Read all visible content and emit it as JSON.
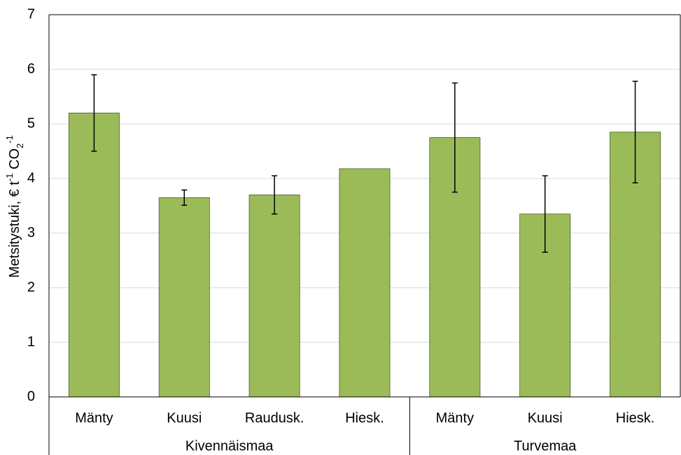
{
  "chart_data": {
    "type": "bar",
    "ylabel_parts": [
      {
        "text": "Metsitystuki, € t"
      },
      {
        "sup": "-1"
      },
      {
        "text": " CO"
      },
      {
        "sub": "2"
      },
      {
        "sup": "-1"
      }
    ],
    "categories": [
      "Mänty",
      "Kuusi",
      "Raudusk.",
      "Hiesk.",
      "Mänty",
      "Kuusi",
      "Hiesk."
    ],
    "groups": [
      {
        "name": "Kivennäismaa",
        "count": 4
      },
      {
        "name": "Turvemaa",
        "count": 3
      }
    ],
    "values": [
      5.2,
      3.65,
      3.7,
      4.18,
      4.75,
      3.35,
      4.85
    ],
    "errors": [
      0.7,
      0.14,
      0.35,
      null,
      1.0,
      0.7,
      0.93
    ],
    "color": "#9bbb59",
    "ylim": [
      0,
      7
    ],
    "yticks": [
      0,
      1,
      2,
      3,
      4,
      5,
      6,
      7
    ],
    "grid": true
  }
}
